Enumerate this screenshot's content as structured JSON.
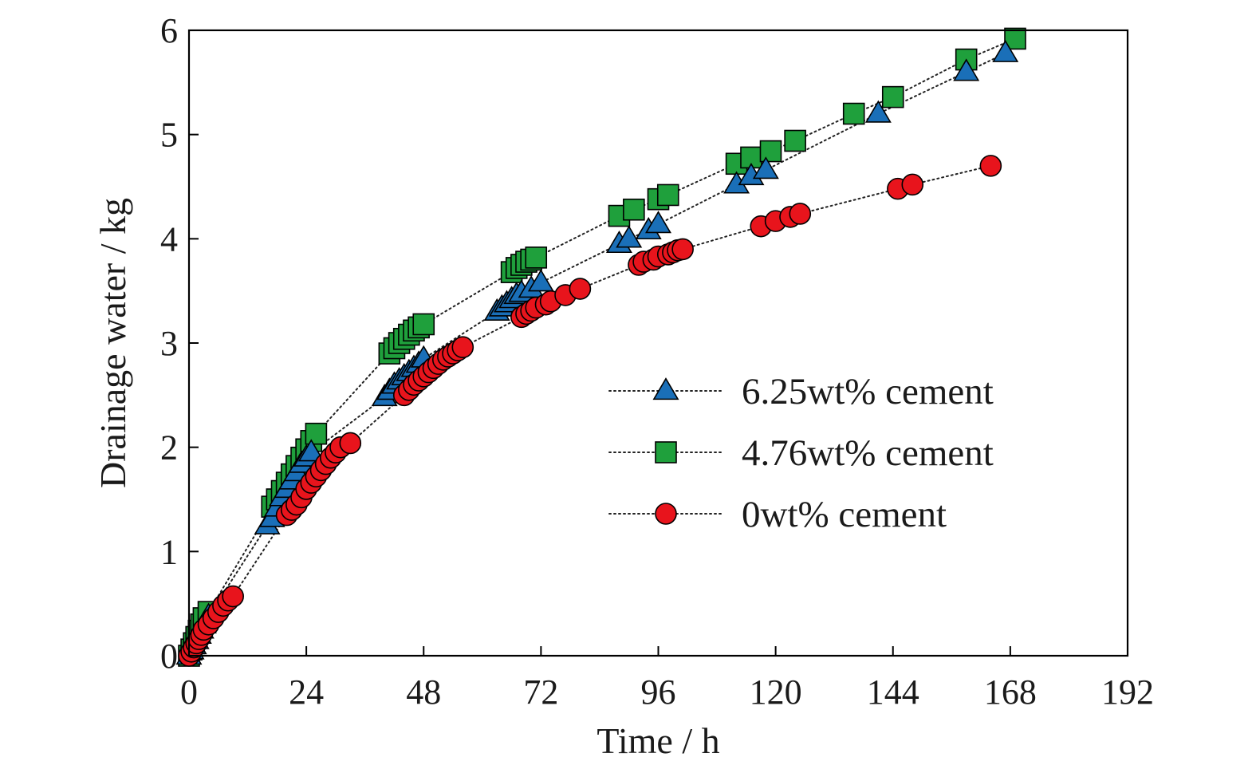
{
  "chart_data": {
    "type": "scatter",
    "title": "",
    "xlabel": "Time / h",
    "ylabel": "Drainage water / kg",
    "xlim": [
      0,
      192
    ],
    "ylim": [
      0,
      6
    ],
    "xticks": [
      0,
      24,
      48,
      72,
      96,
      120,
      144,
      168,
      192
    ],
    "yticks": [
      0,
      1,
      2,
      3,
      4,
      5,
      6
    ],
    "xtick_labels": [
      "0",
      "24",
      "48",
      "72",
      "96",
      "120",
      "144",
      "168",
      "192"
    ],
    "ytick_labels": [
      "0",
      "1",
      "2",
      "3",
      "4",
      "5",
      "6"
    ],
    "grid": false,
    "legend_position": "center-right",
    "series": [
      {
        "name": "6.25wt% cement",
        "marker": "triangle",
        "color": "#1a6fb8",
        "points": [
          [
            0,
            0
          ],
          [
            0.5,
            0.05
          ],
          [
            1,
            0.1
          ],
          [
            1.5,
            0.15
          ],
          [
            2,
            0.2
          ],
          [
            2.5,
            0.25
          ],
          [
            3,
            0.3
          ],
          [
            4,
            0.38
          ],
          [
            16,
            1.25
          ],
          [
            17,
            1.32
          ],
          [
            18,
            1.42
          ],
          [
            19,
            1.52
          ],
          [
            20,
            1.6
          ],
          [
            21,
            1.68
          ],
          [
            22,
            1.76
          ],
          [
            23,
            1.84
          ],
          [
            24,
            1.9
          ],
          [
            25,
            1.95
          ],
          [
            40,
            2.48
          ],
          [
            41,
            2.54
          ],
          [
            42,
            2.6
          ],
          [
            43,
            2.64
          ],
          [
            44,
            2.68
          ],
          [
            45,
            2.72
          ],
          [
            46,
            2.76
          ],
          [
            47,
            2.8
          ],
          [
            48,
            2.85
          ],
          [
            63,
            3.3
          ],
          [
            64,
            3.34
          ],
          [
            65,
            3.38
          ],
          [
            66,
            3.42
          ],
          [
            67,
            3.46
          ],
          [
            68,
            3.48
          ],
          [
            70,
            3.52
          ],
          [
            72,
            3.58
          ],
          [
            88,
            3.95
          ],
          [
            90,
            4.0
          ],
          [
            94,
            4.08
          ],
          [
            96,
            4.14
          ],
          [
            112,
            4.52
          ],
          [
            115,
            4.6
          ],
          [
            118,
            4.66
          ],
          [
            141,
            5.2
          ],
          [
            159,
            5.6
          ],
          [
            167,
            5.78
          ]
        ]
      },
      {
        "name": "4.76wt% cement",
        "marker": "square",
        "color": "#1fa03c",
        "points": [
          [
            0,
            0
          ],
          [
            0.5,
            0.06
          ],
          [
            1,
            0.12
          ],
          [
            1.5,
            0.18
          ],
          [
            2,
            0.24
          ],
          [
            2.5,
            0.3
          ],
          [
            3,
            0.36
          ],
          [
            4,
            0.42
          ],
          [
            17,
            1.43
          ],
          [
            18,
            1.5
          ],
          [
            19,
            1.58
          ],
          [
            20,
            1.66
          ],
          [
            21,
            1.74
          ],
          [
            22,
            1.82
          ],
          [
            23,
            1.9
          ],
          [
            24,
            1.98
          ],
          [
            25,
            2.06
          ],
          [
            26,
            2.13
          ],
          [
            41,
            2.9
          ],
          [
            42,
            2.95
          ],
          [
            43,
            3.0
          ],
          [
            44,
            3.04
          ],
          [
            45,
            3.08
          ],
          [
            46,
            3.12
          ],
          [
            47,
            3.15
          ],
          [
            48,
            3.18
          ],
          [
            66,
            3.68
          ],
          [
            67,
            3.72
          ],
          [
            68,
            3.75
          ],
          [
            69,
            3.78
          ],
          [
            70,
            3.8
          ],
          [
            71,
            3.82
          ],
          [
            88,
            4.22
          ],
          [
            91,
            4.28
          ],
          [
            96,
            4.38
          ],
          [
            98,
            4.42
          ],
          [
            112,
            4.72
          ],
          [
            115,
            4.78
          ],
          [
            119,
            4.84
          ],
          [
            124,
            4.94
          ],
          [
            136,
            5.2
          ],
          [
            144,
            5.36
          ],
          [
            159,
            5.72
          ],
          [
            169,
            5.92
          ]
        ]
      },
      {
        "name": "0wt% cement",
        "marker": "circle",
        "color": "#e8141c",
        "points": [
          [
            0,
            0
          ],
          [
            0.5,
            0.04
          ],
          [
            1,
            0.08
          ],
          [
            1.5,
            0.12
          ],
          [
            2,
            0.16
          ],
          [
            2.5,
            0.2
          ],
          [
            3,
            0.25
          ],
          [
            4,
            0.3
          ],
          [
            5,
            0.36
          ],
          [
            6,
            0.42
          ],
          [
            7,
            0.48
          ],
          [
            8,
            0.53
          ],
          [
            9,
            0.57
          ],
          [
            20,
            1.35
          ],
          [
            21,
            1.4
          ],
          [
            22,
            1.45
          ],
          [
            23,
            1.52
          ],
          [
            24,
            1.6
          ],
          [
            25,
            1.66
          ],
          [
            26,
            1.72
          ],
          [
            27,
            1.78
          ],
          [
            28,
            1.84
          ],
          [
            29,
            1.9
          ],
          [
            30,
            1.95
          ],
          [
            31,
            2.0
          ],
          [
            33,
            2.04
          ],
          [
            44,
            2.5
          ],
          [
            45,
            2.55
          ],
          [
            46,
            2.6
          ],
          [
            47,
            2.64
          ],
          [
            48,
            2.68
          ],
          [
            49,
            2.72
          ],
          [
            50,
            2.76
          ],
          [
            51,
            2.8
          ],
          [
            52,
            2.84
          ],
          [
            53,
            2.87
          ],
          [
            54,
            2.9
          ],
          [
            55,
            2.93
          ],
          [
            56,
            2.96
          ],
          [
            68,
            3.25
          ],
          [
            69,
            3.28
          ],
          [
            70,
            3.31
          ],
          [
            71,
            3.34
          ],
          [
            73,
            3.37
          ],
          [
            74,
            3.4
          ],
          [
            77,
            3.46
          ],
          [
            80,
            3.52
          ],
          [
            92,
            3.75
          ],
          [
            93,
            3.78
          ],
          [
            95,
            3.8
          ],
          [
            96,
            3.83
          ],
          [
            98,
            3.85
          ],
          [
            99,
            3.87
          ],
          [
            100,
            3.89
          ],
          [
            101,
            3.9
          ],
          [
            117,
            4.12
          ],
          [
            120,
            4.17
          ],
          [
            123,
            4.21
          ],
          [
            125,
            4.24
          ],
          [
            145,
            4.48
          ],
          [
            148,
            4.52
          ],
          [
            164,
            4.7
          ]
        ]
      }
    ]
  }
}
